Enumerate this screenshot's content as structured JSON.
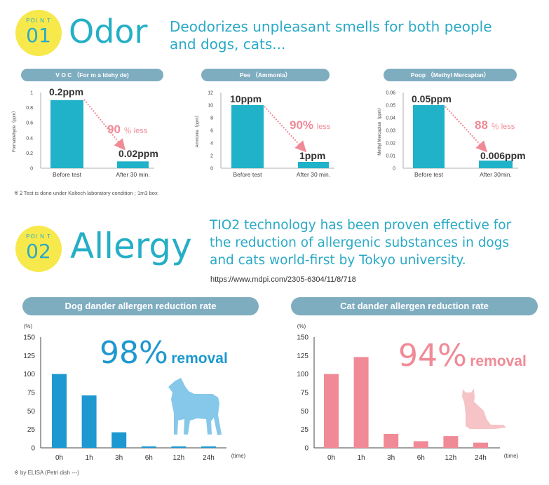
{
  "odor": {
    "point_label": "POI N T",
    "number": "01",
    "title": "Odor",
    "description_line1": "Deodorizes unpleasant smells for both people",
    "description_line2": "and dogs, cats...",
    "footnote": "※２Test is done under Kaltech laboratory condition ; 1m3 box"
  },
  "allergy": {
    "point_label": "POI N T",
    "number": "02",
    "title": "Allergy",
    "description_line1": "TIO2 technology has been proven effective for",
    "description_line2": "the reduction of allergenic substances in dogs",
    "description_line3": "and cats world-first by Tokyo university.",
    "link": "https://www.mdpi.com/2305-6304/11/8/718",
    "footnote": "※ by ELISA (Petri dish ---)"
  },
  "colors": {
    "teal": "#25afc6",
    "bar_odor": "#20b2c8",
    "dog_bar": "#1e98d0",
    "cat_bar": "#f08a96",
    "pink_text": "#f08a96",
    "pill": "#7fadc0",
    "badge": "#f7e94c"
  },
  "chart_data": [
    {
      "type": "bar",
      "title": "V O C （For m a ldehy de)",
      "ylabel": "Formaldehyde（ppm）",
      "categories": [
        "Before test",
        "After 30 min."
      ],
      "values": [
        0.2,
        0.02
      ],
      "value_labels": [
        "0.2ppm",
        "0.02ppm"
      ],
      "reduction_number": "90",
      "reduction_unit": "％ less",
      "yticks": [
        "0",
        "0.2",
        "0.4",
        "0.6",
        "0.8",
        "1"
      ],
      "ylim": [
        0,
        1
      ],
      "bar_heights_in_axis": [
        0.9,
        0.09
      ]
    },
    {
      "type": "bar",
      "title": "Pee （Ammonia）",
      "ylabel": "Ammonia（ppm）",
      "categories": [
        "Before test",
        "After 30 min."
      ],
      "values": [
        10,
        1
      ],
      "value_labels": [
        "10ppm",
        "1ppm"
      ],
      "reduction_number": "90%",
      "reduction_unit": "less",
      "yticks": [
        "0",
        "2",
        "4",
        "6",
        "8",
        "10",
        "12"
      ],
      "ylim": [
        0,
        12
      ]
    },
    {
      "type": "bar",
      "title": "Poop （Methyl Mercaptan）",
      "ylabel": "Methyl Mercaptan（ppm）",
      "categories": [
        "Before test",
        "After 30min."
      ],
      "values": [
        0.05,
        0.006
      ],
      "value_labels": [
        "0.05ppm",
        "0.006ppm"
      ],
      "reduction_number": "88",
      "reduction_unit": "％ less",
      "yticks": [
        "0",
        "0.01",
        "0.02",
        "0.03",
        "0.04",
        "0.05",
        "0.06"
      ],
      "ylim": [
        0,
        0.06
      ]
    },
    {
      "type": "bar",
      "title": "Dog dander allergen reduction rate",
      "ylabel": "(%)",
      "xlabel": "(time)",
      "categories": [
        "0h",
        "1h",
        "3h",
        "6h",
        "12h",
        "24h"
      ],
      "values": [
        100,
        71,
        21,
        2,
        2,
        2
      ],
      "yticks": [
        "0",
        "25",
        "50",
        "75",
        "100",
        "125",
        "150"
      ],
      "ylim": [
        0,
        150
      ],
      "headline_number": "98%",
      "headline_word": "removal"
    },
    {
      "type": "bar",
      "title": "Cat dander allergen reduction rate",
      "ylabel": "(%)",
      "xlabel": "(time)",
      "categories": [
        "0h",
        "1h",
        "3h",
        "6h",
        "12h",
        "24h"
      ],
      "values": [
        100,
        123,
        19,
        9,
        16,
        7
      ],
      "yticks": [
        "0",
        "25",
        "50",
        "75",
        "100",
        "125",
        "150"
      ],
      "ylim": [
        0,
        150
      ],
      "headline_number": "94%",
      "headline_word": "removal"
    }
  ]
}
